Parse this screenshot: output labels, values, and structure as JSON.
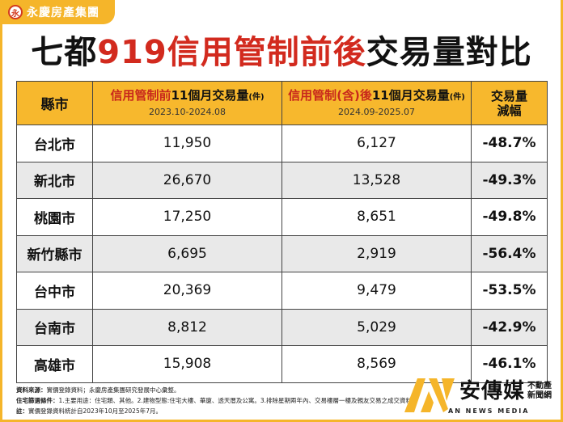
{
  "logo": {
    "icon": "永",
    "text": "永慶房產集團"
  },
  "title": {
    "prefix": "七都",
    "highlight": "919信用管制前後",
    "suffix": "交易量對比"
  },
  "table": {
    "headers": {
      "city": "縣市",
      "before_main": "信用管制前",
      "before_rest": "11個月交易量",
      "before_unit": "(件)",
      "before_period": "2023.10-2024.08",
      "after_main": "信用管制(含)後",
      "after_rest": "11個月交易量",
      "after_unit": "(件)",
      "after_period": "2024.09-2025.07",
      "change_line1": "交易量",
      "change_line2": "減幅"
    },
    "rows": [
      {
        "city": "台北市",
        "before": "11,950",
        "after": "6,127",
        "change": "-48.7%"
      },
      {
        "city": "新北市",
        "before": "26,670",
        "after": "13,528",
        "change": "-49.3%"
      },
      {
        "city": "桃園市",
        "before": "17,250",
        "after": "8,651",
        "change": "-49.8%"
      },
      {
        "city": "新竹縣市",
        "before": "6,695",
        "after": "2,919",
        "change": "-56.4%"
      },
      {
        "city": "台中市",
        "before": "20,369",
        "after": "9,479",
        "change": "-53.5%"
      },
      {
        "city": "台南市",
        "before": "8,812",
        "after": "5,029",
        "change": "-42.9%"
      },
      {
        "city": "高雄市",
        "before": "15,908",
        "after": "8,569",
        "change": "-46.1%"
      }
    ]
  },
  "footer": {
    "source_label": "資料來源：",
    "source_text": "實價登錄資料；永慶房產集團研究發展中心彙整。",
    "criteria_label": "住宅篩選條件：",
    "criteria_text": "1.主要用途：住宅類、其他。2.建物型態:住宅大樓、華廈、透天厝及公寓。3.排除星期兩年內、交易樓層一樓及親友交易之成交資料。",
    "note_label": "註：",
    "note_text": "實價登錄資料統計自2023年10月至2025年7月。"
  },
  "brand": {
    "name": "安傳媒",
    "side1": "不動產",
    "side2": "新聞網",
    "english": "AN NEWS MEDIA"
  },
  "colors": {
    "accent": "#f5b52a",
    "title_red": "#d22a1e"
  }
}
